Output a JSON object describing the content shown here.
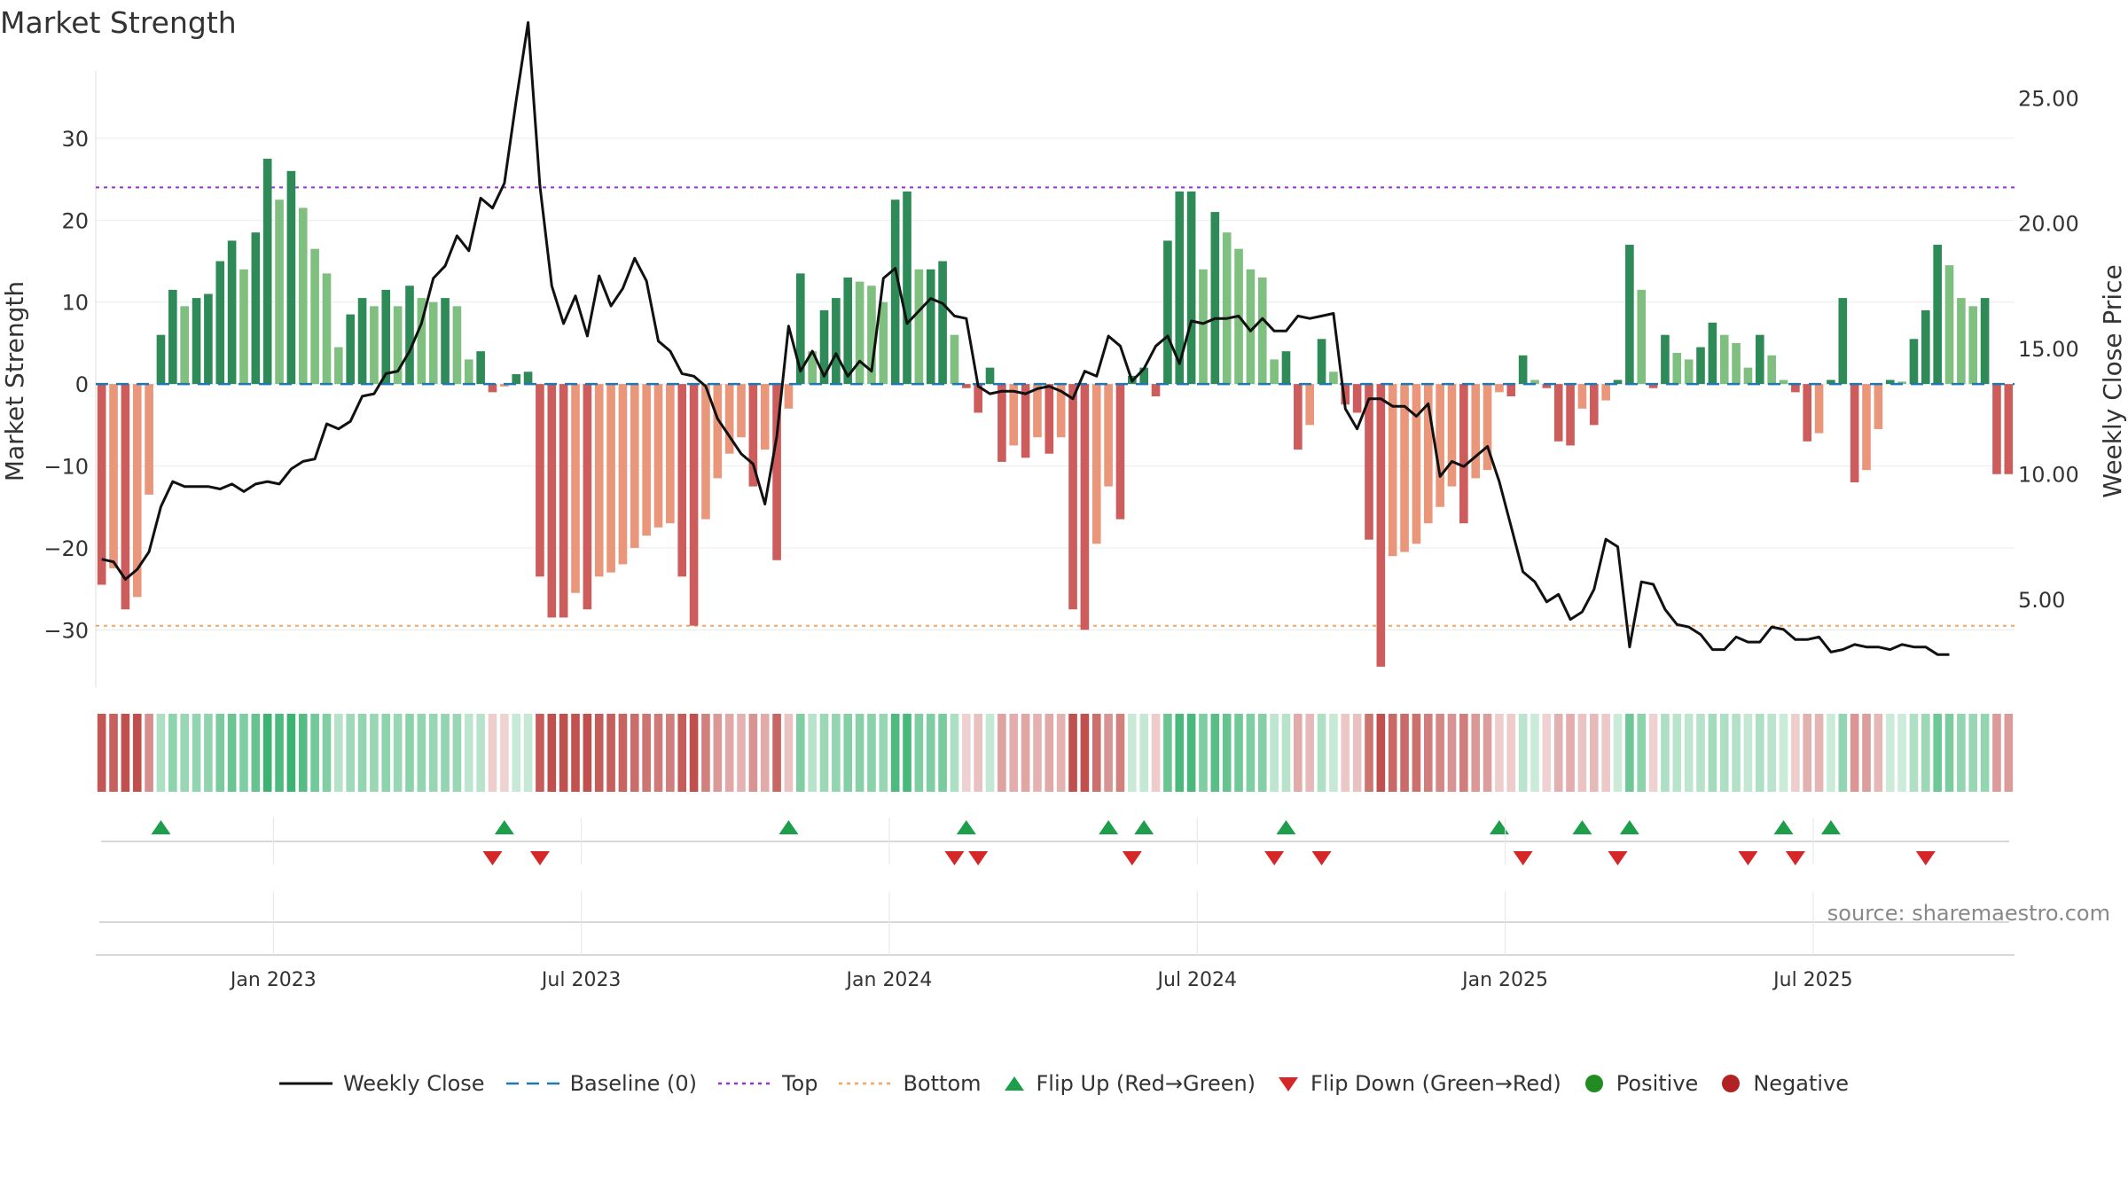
{
  "title": "Market Strength",
  "source": "source: sharemaestro.com",
  "colors": {
    "strong_green": "#2e8b57",
    "light_green": "#7fbf7f",
    "strong_red": "#cd5c5c",
    "light_red": "#e9967a",
    "close_line": "#111111",
    "baseline": "#1f77b4",
    "top": "#9b30d0",
    "bottom": "#f4a460",
    "flip_up": "#1e9e4a",
    "flip_down": "#d62728"
  },
  "legend": [
    {
      "label": "Weekly Close",
      "icon": "solid-line",
      "color": "#111111"
    },
    {
      "label": "Baseline (0)",
      "icon": "dashed-line",
      "color": "#1f77b4"
    },
    {
      "label": "Top",
      "icon": "dotted-line",
      "color": "#9b30d0"
    },
    {
      "label": "Bottom",
      "icon": "dotted-line",
      "color": "#f4a460"
    },
    {
      "label": "Flip Up (Red→Green)",
      "icon": "triangle-up",
      "color": "#1e9e4a"
    },
    {
      "label": "Flip Down (Green→Red)",
      "icon": "triangle-down",
      "color": "#d62728"
    },
    {
      "label": "Positive",
      "icon": "circle",
      "color": "#228b22"
    },
    {
      "label": "Negative",
      "icon": "circle",
      "color": "#b22222"
    }
  ],
  "chart_data": {
    "type": "bar",
    "ylabel": "Market Strength",
    "y2label": "Weekly Close Price",
    "ylim": [
      -37,
      38
    ],
    "y2lim": [
      1.5,
      26
    ],
    "yticks": [
      "30",
      "20",
      "10",
      "0",
      "−10",
      "−20",
      "−30"
    ],
    "ytick_values": [
      30,
      20,
      10,
      0,
      -10,
      -20,
      -30
    ],
    "y2ticks": [
      "25.00",
      "20.00",
      "15.00",
      "10.00",
      "5.00"
    ],
    "y2tick_values": [
      25,
      20,
      15,
      10,
      5
    ],
    "xticks": [
      "Jan 2023",
      "Jul 2023",
      "Jan 2024",
      "Jul 2024",
      "Jan 2025",
      "Jul 2025"
    ],
    "xtick_weeks": [
      15,
      41,
      67,
      93,
      119,
      145
    ],
    "top_threshold": 24,
    "bottom_threshold": -29.5,
    "baseline": 0,
    "strength": [
      -24.5,
      -22.5,
      -27.5,
      -26,
      -13.5,
      6,
      11.5,
      9.5,
      10.5,
      11,
      15,
      17.5,
      14,
      18.5,
      27.5,
      22.5,
      26,
      21.5,
      16.5,
      13.5,
      4.5,
      8.5,
      10.5,
      9.5,
      11.5,
      9.5,
      12,
      10.5,
      10,
      10.5,
      9.5,
      3,
      4,
      -1,
      -0.3,
      1.2,
      1.5,
      -23.5,
      -28.5,
      -28.5,
      -25.5,
      -27.5,
      -23.5,
      -23,
      -22,
      -20,
      -18.5,
      -17.5,
      -17,
      -23.5,
      -29.5,
      -16.5,
      -11.5,
      -8.5,
      -6.5,
      -12.5,
      -8,
      -21.5,
      -3,
      13.5,
      4,
      9,
      10.5,
      13,
      12.5,
      12,
      10,
      22.5,
      23.5,
      14,
      14,
      15,
      6,
      -0.5,
      -3.5,
      2,
      -9.5,
      -7.5,
      -9,
      -6.5,
      -8.5,
      -6.5,
      -27.5,
      -30,
      -19.5,
      -12.5,
      -16.5,
      1,
      2,
      -1.5,
      17.5,
      23.5,
      23.5,
      14,
      21,
      18.5,
      16.5,
      14,
      13,
      3,
      4,
      -8,
      -5,
      5.5,
      1.5,
      -2.5,
      -3.5,
      -19,
      -34.5,
      -21,
      -20.5,
      -19.5,
      -17,
      -15,
      -12.5,
      -17,
      -11.5,
      -10.5,
      -1,
      -1.5,
      3.5,
      0.5,
      -0.5,
      -7,
      -7.5,
      -3,
      -5,
      -2,
      0.5,
      17,
      11.5,
      -0.5,
      6,
      3.8,
      3,
      4.5,
      7.5,
      6,
      5,
      2,
      6,
      3.5,
      0.5,
      -1,
      -7,
      -6,
      0.5,
      10.5,
      -12,
      -10.5,
      -5.5,
      0.5,
      0.3,
      5.5,
      9,
      17,
      14.5,
      10.5,
      9.5,
      10.5,
      -11,
      -11
    ],
    "close": [
      6.6,
      6.5,
      5.8,
      6.2,
      6.9,
      8.7,
      9.7,
      9.5,
      9.5,
      9.5,
      9.4,
      9.6,
      9.3,
      9.6,
      9.7,
      9.6,
      10.2,
      10.5,
      10.6,
      12.0,
      11.8,
      12.1,
      13.1,
      13.2,
      14.0,
      14.1,
      14.9,
      16.0,
      17.8,
      18.3,
      19.5,
      18.9,
      21.0,
      20.6,
      21.6,
      24.9,
      28.0,
      21.5,
      17.5,
      16.0,
      17.1,
      15.5,
      17.9,
      16.7,
      17.4,
      18.6,
      17.7,
      15.3,
      14.9,
      14.0,
      13.9,
      13.5,
      12.2,
      11.5,
      10.8,
      10.4,
      8.8,
      11.5,
      15.9,
      14.1,
      14.9,
      13.9,
      14.8,
      13.9,
      14.5,
      14.1,
      17.8,
      18.2,
      16.0,
      16.5,
      17.0,
      16.8,
      16.3,
      16.2,
      13.5,
      13.2,
      13.3,
      13.3,
      13.2,
      13.4,
      13.5,
      13.3,
      13.0,
      14.1,
      13.9,
      15.5,
      15.1,
      13.7,
      14.2,
      15.1,
      15.5,
      14.4,
      16.1,
      16.0,
      16.2,
      16.2,
      16.3,
      15.7,
      16.2,
      15.7,
      15.7,
      16.3,
      16.2,
      16.3,
      16.4,
      12.6,
      11.8,
      13.0,
      13.0,
      12.7,
      12.7,
      12.3,
      12.8,
      9.9,
      10.5,
      10.3,
      10.7,
      11.1,
      9.7,
      7.9,
      6.1,
      5.7,
      4.9,
      5.2,
      4.2,
      4.5,
      5.4,
      7.4,
      7.1,
      3.1,
      5.7,
      5.6,
      4.6,
      4.0,
      3.9,
      3.6,
      3.0,
      3.0,
      3.5,
      3.3,
      3.3,
      3.9,
      3.8,
      3.4,
      3.4,
      3.5,
      2.9,
      3.0,
      3.2,
      3.1,
      3.1,
      3.0,
      3.2,
      3.1,
      3.1,
      2.8,
      2.8
    ],
    "flip_up": [
      5,
      34,
      58,
      73,
      85,
      88,
      100,
      118,
      125,
      129,
      142,
      146
    ],
    "flip_down": [
      33,
      37,
      72,
      74,
      87,
      99,
      103,
      120,
      128,
      139,
      143,
      154
    ]
  }
}
